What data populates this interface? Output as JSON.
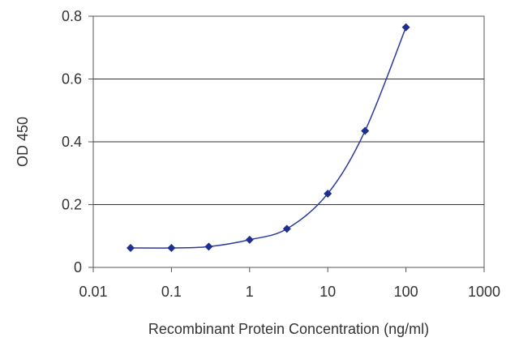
{
  "chart_data": {
    "type": "line",
    "title": "",
    "xlabel": "Recombinant Protein Concentration (ng/ml)",
    "ylabel": "OD 450",
    "x_scale": "log",
    "xlim": [
      0.01,
      1000
    ],
    "ylim": [
      0,
      0.8
    ],
    "x_ticks": [
      0.01,
      0.1,
      1,
      10,
      100,
      1000
    ],
    "x_tick_labels": [
      "0.01",
      "0.1",
      "1",
      "10",
      "100",
      "1000"
    ],
    "y_ticks": [
      0,
      0.2,
      0.4,
      0.6,
      0.8
    ],
    "y_tick_labels": [
      "0",
      "0.2",
      "0.4",
      "0.6",
      "0.8"
    ],
    "grid": "horizontal",
    "series": [
      {
        "color": "#1f2f8f",
        "x": [
          0.03,
          0.1,
          0.3,
          1,
          3,
          10,
          30,
          100
        ],
        "y": [
          0.062,
          0.062,
          0.066,
          0.088,
          0.123,
          0.235,
          0.435,
          0.765
        ]
      }
    ]
  }
}
